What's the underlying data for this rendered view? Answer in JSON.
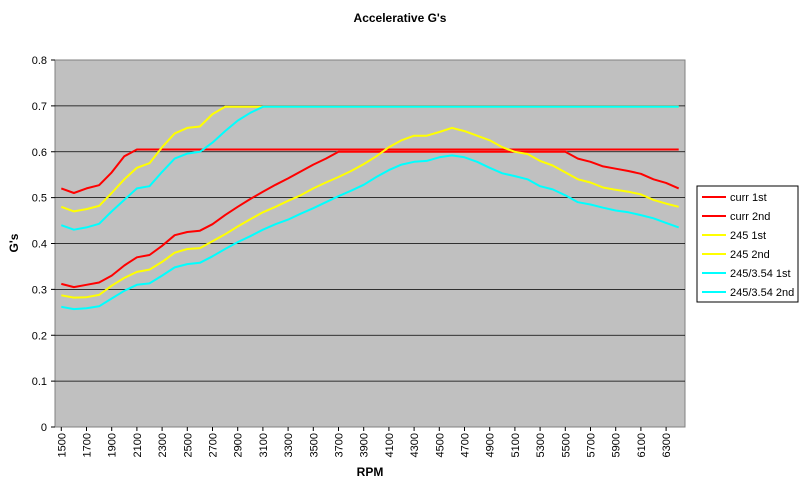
{
  "chart_data": {
    "type": "line",
    "title": "Accelerative G's",
    "xlabel": "RPM",
    "ylabel": "G's",
    "ylim": [
      0,
      0.8
    ],
    "yticks": [
      "0",
      "0.1",
      "0.2",
      "0.3",
      "0.4",
      "0.5",
      "0.6",
      "0.7",
      "0.8"
    ],
    "x": [
      1500,
      1600,
      1700,
      1800,
      1900,
      2000,
      2100,
      2200,
      2300,
      2400,
      2500,
      2600,
      2700,
      2800,
      2900,
      3000,
      3100,
      3200,
      3300,
      3400,
      3500,
      3600,
      3700,
      3800,
      3900,
      4000,
      4100,
      4200,
      4300,
      4400,
      4500,
      4600,
      4700,
      4800,
      4900,
      5000,
      5100,
      5200,
      5300,
      5400,
      5500,
      5600,
      5700,
      5800,
      5900,
      6000,
      6100,
      6200,
      6300,
      6400
    ],
    "x_tick_labels": [
      "1500",
      "1700",
      "1900",
      "2100",
      "2300",
      "2500",
      "2700",
      "2900",
      "3100",
      "3300",
      "3500",
      "3700",
      "3900",
      "4100",
      "4300",
      "4500",
      "4700",
      "4900",
      "5100",
      "5300",
      "5500",
      "5700",
      "5900",
      "6100",
      "6300"
    ],
    "grid": "horizontal",
    "legend_position": "right",
    "plot_background": "#c0c0c0",
    "series": [
      {
        "name": "curr 1st",
        "color": "#ff0000",
        "values": [
          0.52,
          0.51,
          0.52,
          0.527,
          0.555,
          0.59,
          0.605,
          0.605,
          0.605,
          0.605,
          0.605,
          0.605,
          0.605,
          0.605,
          0.605,
          0.605,
          0.605,
          0.605,
          0.605,
          0.605,
          0.605,
          0.605,
          0.605,
          0.605,
          0.605,
          0.605,
          0.605,
          0.605,
          0.605,
          0.605,
          0.605,
          0.605,
          0.605,
          0.605,
          0.605,
          0.605,
          0.605,
          0.605,
          0.605,
          0.605,
          0.605,
          0.605,
          0.605,
          0.605,
          0.605,
          0.605,
          0.605,
          0.605,
          0.605,
          0.605
        ]
      },
      {
        "name": "curr 2nd",
        "color": "#ff0000",
        "values": [
          0.312,
          0.305,
          0.31,
          0.315,
          0.33,
          0.352,
          0.37,
          0.375,
          0.395,
          0.418,
          0.425,
          0.428,
          0.442,
          0.462,
          0.48,
          0.497,
          0.513,
          0.528,
          0.542,
          0.557,
          0.572,
          0.585,
          0.6,
          0.6,
          0.6,
          0.6,
          0.6,
          0.6,
          0.6,
          0.6,
          0.6,
          0.6,
          0.6,
          0.6,
          0.6,
          0.6,
          0.6,
          0.6,
          0.6,
          0.6,
          0.6,
          0.585,
          0.578,
          0.568,
          0.563,
          0.558,
          0.552,
          0.54,
          0.532,
          0.52
        ]
      },
      {
        "name": "245 1st",
        "color": "#ffff00",
        "values": [
          0.48,
          0.47,
          0.475,
          0.482,
          0.51,
          0.54,
          0.565,
          0.575,
          0.61,
          0.64,
          0.652,
          0.655,
          0.682,
          0.698,
          0.698,
          0.698,
          0.698,
          0.698,
          0.698,
          0.698,
          0.698,
          0.698,
          0.698,
          0.698,
          0.698,
          0.698,
          0.698,
          0.698,
          0.698,
          0.698,
          0.698,
          0.698,
          0.698,
          0.698,
          0.698,
          0.698,
          0.698,
          0.698,
          0.698,
          0.698,
          0.698,
          0.698,
          0.698,
          0.698,
          0.698,
          0.698,
          0.698,
          0.698,
          0.698,
          0.698
        ]
      },
      {
        "name": "245 2nd",
        "color": "#ffff00",
        "values": [
          0.287,
          0.282,
          0.283,
          0.288,
          0.308,
          0.325,
          0.338,
          0.343,
          0.36,
          0.38,
          0.388,
          0.39,
          0.405,
          0.42,
          0.437,
          0.453,
          0.468,
          0.48,
          0.493,
          0.505,
          0.52,
          0.533,
          0.545,
          0.558,
          0.573,
          0.59,
          0.61,
          0.625,
          0.635,
          0.635,
          0.643,
          0.652,
          0.645,
          0.635,
          0.625,
          0.61,
          0.6,
          0.595,
          0.58,
          0.57,
          0.555,
          0.54,
          0.533,
          0.522,
          0.517,
          0.513,
          0.507,
          0.495,
          0.487,
          0.48
        ]
      },
      {
        "name": "245/3.54 1st",
        "color": "#00ffff",
        "values": [
          0.44,
          0.43,
          0.435,
          0.443,
          0.47,
          0.495,
          0.52,
          0.525,
          0.556,
          0.585,
          0.596,
          0.6,
          0.62,
          0.645,
          0.668,
          0.685,
          0.698,
          0.698,
          0.698,
          0.698,
          0.698,
          0.698,
          0.698,
          0.698,
          0.698,
          0.698,
          0.698,
          0.698,
          0.698,
          0.698,
          0.698,
          0.698,
          0.698,
          0.698,
          0.698,
          0.698,
          0.698,
          0.698,
          0.698,
          0.698,
          0.698,
          0.698,
          0.698,
          0.698,
          0.698,
          0.698,
          0.698,
          0.698,
          0.698,
          0.698
        ]
      },
      {
        "name": "245/3.54 2nd",
        "color": "#00ffff",
        "values": [
          0.262,
          0.257,
          0.259,
          0.263,
          0.28,
          0.297,
          0.31,
          0.313,
          0.33,
          0.348,
          0.355,
          0.358,
          0.372,
          0.388,
          0.403,
          0.416,
          0.43,
          0.442,
          0.452,
          0.465,
          0.477,
          0.49,
          0.503,
          0.515,
          0.528,
          0.545,
          0.56,
          0.572,
          0.578,
          0.58,
          0.588,
          0.592,
          0.588,
          0.578,
          0.565,
          0.553,
          0.547,
          0.54,
          0.525,
          0.518,
          0.505,
          0.49,
          0.485,
          0.478,
          0.472,
          0.468,
          0.462,
          0.455,
          0.445,
          0.435
        ]
      }
    ]
  }
}
